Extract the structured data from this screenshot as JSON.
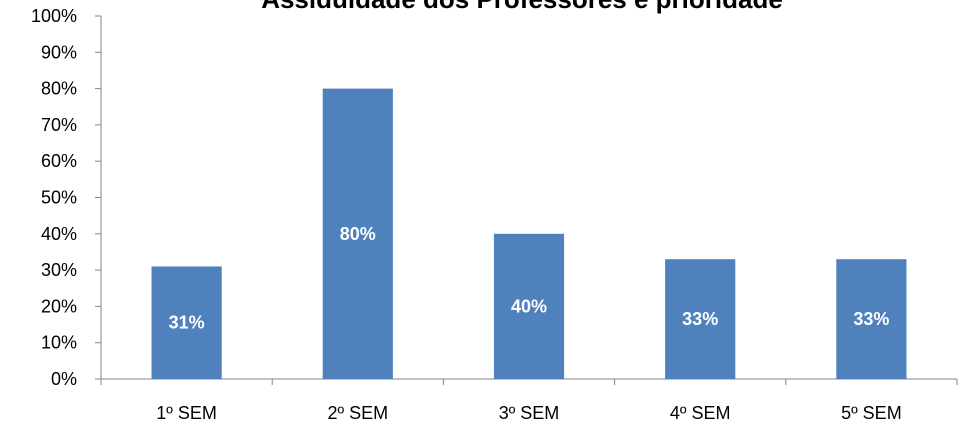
{
  "chart_data": {
    "type": "bar",
    "title": "Assiduidade dos Professores e prioridade",
    "categories": [
      "1º SEM",
      "2º SEM",
      "3º SEM",
      "4º SEM",
      "5º SEM"
    ],
    "values": [
      31,
      80,
      40,
      33,
      33
    ],
    "data_labels": [
      "31%",
      "80%",
      "40%",
      "33%",
      "33%"
    ],
    "ylim": [
      0,
      100
    ],
    "yticks": [
      "0%",
      "10%",
      "20%",
      "30%",
      "40%",
      "50%",
      "60%",
      "70%",
      "80%",
      "90%",
      "100%"
    ],
    "grid": false,
    "legend": "none",
    "bar_color": "#4F81BD"
  }
}
